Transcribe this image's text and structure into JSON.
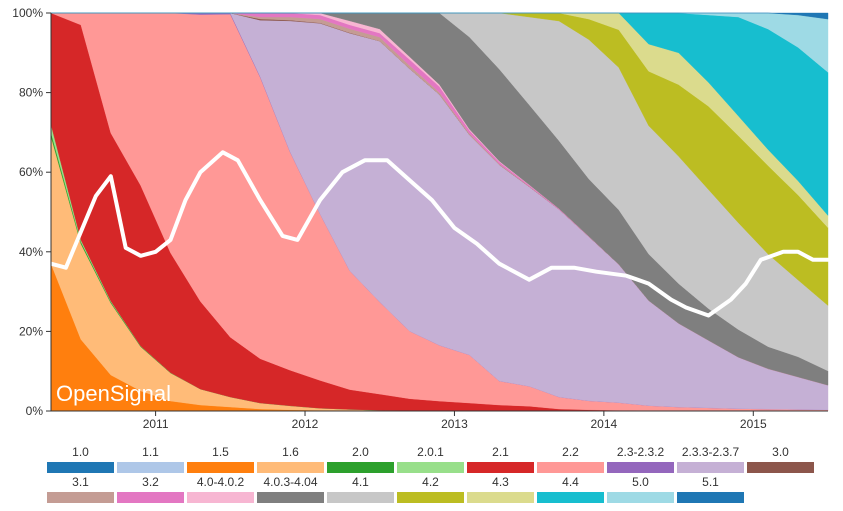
{
  "chart_data": {
    "type": "area",
    "stacked": true,
    "normalized": true,
    "brand": "OpenSignal",
    "y_ticks": [
      "0%",
      "20%",
      "40%",
      "60%",
      "80%",
      "100%"
    ],
    "ylim": [
      0,
      100
    ],
    "x_ticks": [
      {
        "label": "2011",
        "t": 2011.0
      },
      {
        "label": "2012",
        "t": 2012.0
      },
      {
        "label": "2013",
        "t": 2013.0
      },
      {
        "label": "2014",
        "t": 2014.0
      },
      {
        "label": "2015",
        "t": 2015.0
      }
    ],
    "xlim": [
      2010.3,
      2015.5
    ],
    "x": [
      2010.3,
      2010.5,
      2010.7,
      2010.9,
      2011.1,
      2011.3,
      2011.5,
      2011.7,
      2011.9,
      2012.1,
      2012.3,
      2012.5,
      2012.7,
      2012.9,
      2013.1,
      2013.3,
      2013.5,
      2013.7,
      2013.9,
      2014.1,
      2014.3,
      2014.5,
      2014.7,
      2014.9,
      2015.1,
      2015.3,
      2015.5
    ],
    "series": [
      {
        "name": "1.5",
        "color": "#ff7f0e",
        "values": [
          37,
          18,
          9,
          5,
          2.5,
          1.5,
          1,
          0.5,
          0.3,
          0.2,
          0.1,
          0,
          0,
          0,
          0,
          0,
          0,
          0,
          0,
          0,
          0,
          0,
          0,
          0,
          0,
          0,
          0
        ]
      },
      {
        "name": "1.6",
        "color": "#ffbb78",
        "values": [
          32,
          24,
          18,
          11,
          7,
          4,
          2.5,
          1.5,
          1,
          0.5,
          0.3,
          0.2,
          0.1,
          0,
          0,
          0,
          0,
          0,
          0,
          0,
          0,
          0,
          0,
          0,
          0,
          0,
          0
        ]
      },
      {
        "name": "2.0",
        "color": "#2ca02c",
        "values": [
          1,
          0.5,
          0.3,
          0.2,
          0.1,
          0,
          0,
          0,
          0,
          0,
          0,
          0,
          0,
          0,
          0,
          0,
          0,
          0,
          0,
          0,
          0,
          0,
          0,
          0,
          0,
          0,
          0
        ]
      },
      {
        "name": "2.0.1",
        "color": "#98df8a",
        "values": [
          2,
          0.5,
          0.2,
          0,
          0,
          0,
          0,
          0,
          0,
          0,
          0,
          0,
          0,
          0,
          0,
          0,
          0,
          0,
          0,
          0,
          0,
          0,
          0,
          0,
          0,
          0,
          0
        ]
      },
      {
        "name": "2.1",
        "color": "#d62728",
        "values": [
          28,
          54,
          42,
          40,
          30,
          22,
          15,
          11,
          9,
          7,
          5,
          4,
          3,
          2.5,
          2,
          1.5,
          1.2,
          0.5,
          0.3,
          0.2,
          0.1,
          0,
          0,
          0,
          0,
          0,
          0
        ]
      },
      {
        "name": "2.2",
        "color": "#ff9896",
        "values": [
          0,
          3,
          30,
          43,
          60,
          72,
          81,
          70,
          55,
          42,
          30,
          23,
          17,
          14,
          12,
          6,
          5,
          3,
          2.2,
          1.8,
          1.3,
          1,
          0.8,
          0.6,
          0.5,
          0.4,
          0.3
        ]
      },
      {
        "name": "2.3-2.3.2",
        "color": "#9467bd",
        "values": [
          0,
          0,
          0,
          0,
          0,
          0.4,
          0.3,
          0.2,
          0.1,
          0,
          0,
          0,
          0,
          0,
          0,
          0,
          0,
          0,
          0,
          0,
          0,
          0,
          0,
          0,
          0,
          0,
          0
        ]
      },
      {
        "name": "2.3.3-2.3.7",
        "color": "#c5b0d5",
        "values": [
          0,
          0,
          0,
          0,
          0,
          0,
          0,
          14,
          33,
          48,
          60,
          65,
          66,
          63,
          55,
          54,
          50,
          47,
          40,
          33,
          27,
          21,
          17,
          13,
          10,
          8,
          6
        ]
      },
      {
        "name": "3.0",
        "color": "#8c564b",
        "values": [
          0,
          0,
          0,
          0,
          0,
          0,
          0,
          0.3,
          0.2,
          0.1,
          0.1,
          0,
          0,
          0,
          0,
          0,
          0,
          0,
          0,
          0,
          0,
          0,
          0,
          0,
          0,
          0,
          0
        ]
      },
      {
        "name": "3.1",
        "color": "#c49c94",
        "values": [
          0,
          0,
          0,
          0,
          0,
          0,
          0,
          0.5,
          0.8,
          1,
          1,
          1,
          0.8,
          0.5,
          0.3,
          0.2,
          0.1,
          0,
          0,
          0,
          0,
          0,
          0,
          0,
          0,
          0,
          0
        ]
      },
      {
        "name": "3.2",
        "color": "#e377c2",
        "values": [
          0,
          0,
          0,
          0,
          0,
          0,
          0,
          1,
          1,
          1,
          1,
          1,
          1.5,
          1.5,
          0.8,
          0.5,
          0.3,
          0.2,
          0.1,
          0,
          0,
          0,
          0,
          0,
          0,
          0,
          0
        ]
      },
      {
        "name": "4.0-4.0.2",
        "color": "#f7b6d2",
        "values": [
          0,
          0,
          0,
          0,
          0,
          0,
          0,
          0,
          0,
          0.5,
          1,
          1,
          0.7,
          0.5,
          0.3,
          0.2,
          0.1,
          0,
          0,
          0,
          0,
          0,
          0,
          0,
          0,
          0,
          0
        ]
      },
      {
        "name": "4.0.3-4.04",
        "color": "#7f7f7f",
        "values": [
          0,
          0,
          0,
          0,
          0,
          0,
          0,
          0,
          0,
          0,
          2,
          4,
          11,
          18,
          23,
          23,
          20,
          17,
          14,
          13,
          12,
          10,
          8,
          7,
          5.5,
          5,
          3.5
        ]
      },
      {
        "name": "4.1",
        "color": "#c7c7c7",
        "values": [
          0,
          0,
          0,
          0,
          0,
          0,
          0,
          0,
          0,
          0,
          0,
          0,
          0,
          0,
          6,
          14,
          22,
          30,
          34,
          34,
          33,
          32,
          30,
          27,
          23,
          19,
          16
        ]
      },
      {
        "name": "4.2",
        "color": "#bcbd22",
        "values": [
          0,
          0,
          0,
          0,
          0,
          0,
          0,
          0,
          0,
          0,
          0,
          0,
          0,
          0,
          0,
          0,
          1,
          2,
          5,
          9,
          14,
          18,
          21,
          22,
          22,
          21,
          19
        ]
      },
      {
        "name": "4.3",
        "color": "#dbdb8d",
        "values": [
          0,
          0,
          0,
          0,
          0,
          0,
          0,
          0,
          0,
          0,
          0,
          0,
          0,
          0,
          0,
          0,
          0,
          0,
          1.5,
          4,
          7,
          8,
          6,
          5,
          4,
          3.5,
          3
        ]
      },
      {
        "name": "4.4",
        "color": "#17becf",
        "values": [
          0,
          0,
          0,
          0,
          0,
          0,
          0,
          0,
          0,
          0,
          0,
          0,
          0,
          0,
          0,
          0,
          0,
          0,
          0,
          0,
          8,
          10,
          17,
          25,
          30,
          33,
          35
        ]
      },
      {
        "name": "5.0",
        "color": "#9edae5",
        "values": [
          0,
          0,
          0,
          0,
          0,
          0,
          0,
          0,
          0,
          0,
          0,
          0,
          0,
          0,
          0,
          0,
          0,
          0,
          0,
          0,
          0,
          0,
          0.5,
          1,
          4,
          8,
          13
        ]
      },
      {
        "name": "5.1",
        "color": "#1f77b4",
        "values": [
          0,
          0,
          0,
          0,
          0,
          0,
          0,
          0,
          0,
          0,
          0,
          0,
          0,
          0,
          0,
          0,
          0,
          0,
          0,
          0,
          0,
          0,
          0,
          0,
          0,
          0.5,
          1.5
        ]
      }
    ],
    "overlay_line": {
      "color": "#ffffff",
      "points": [
        [
          2010.3,
          37
        ],
        [
          2010.4,
          36
        ],
        [
          2010.6,
          54
        ],
        [
          2010.7,
          59
        ],
        [
          2010.8,
          41
        ],
        [
          2010.9,
          39
        ],
        [
          2011.0,
          40
        ],
        [
          2011.1,
          43
        ],
        [
          2011.2,
          53
        ],
        [
          2011.3,
          60
        ],
        [
          2011.45,
          65
        ],
        [
          2011.55,
          63
        ],
        [
          2011.7,
          53
        ],
        [
          2011.85,
          44
        ],
        [
          2011.95,
          43
        ],
        [
          2012.1,
          53
        ],
        [
          2012.25,
          60
        ],
        [
          2012.4,
          63
        ],
        [
          2012.55,
          63
        ],
        [
          2012.7,
          58
        ],
        [
          2012.85,
          53
        ],
        [
          2013.0,
          46
        ],
        [
          2013.15,
          42
        ],
        [
          2013.3,
          37
        ],
        [
          2013.5,
          33
        ],
        [
          2013.65,
          36
        ],
        [
          2013.8,
          36
        ],
        [
          2013.95,
          35
        ],
        [
          2014.15,
          34
        ],
        [
          2014.3,
          32
        ],
        [
          2014.45,
          28
        ],
        [
          2014.55,
          26
        ],
        [
          2014.7,
          24
        ],
        [
          2014.85,
          28
        ],
        [
          2014.95,
          32
        ],
        [
          2015.05,
          38
        ],
        [
          2015.2,
          40
        ],
        [
          2015.3,
          40
        ],
        [
          2015.4,
          38
        ],
        [
          2015.5,
          38
        ]
      ]
    },
    "legend": {
      "placement": "bottom",
      "rows": [
        [
          "1.0",
          "1.1",
          "1.5",
          "1.6",
          "2.0",
          "2.0.1",
          "2.1",
          "2.2",
          "2.3-2.3.2",
          "2.3.3-2.3.7",
          "3.0"
        ],
        [
          "3.1",
          "3.2",
          "4.0-4.0.2",
          "4.0.3-4.04",
          "4.1",
          "4.2",
          "4.3",
          "4.4",
          "5.0",
          "5.1"
        ]
      ],
      "colors": {
        "1.0": "#1f77b4",
        "1.1": "#aec7e8",
        "1.5": "#ff7f0e",
        "1.6": "#ffbb78",
        "2.0": "#2ca02c",
        "2.0.1": "#98df8a",
        "2.1": "#d62728",
        "2.2": "#ff9896",
        "2.3-2.3.2": "#9467bd",
        "2.3.3-2.3.7": "#c5b0d5",
        "3.0": "#8c564b",
        "3.1": "#c49c94",
        "3.2": "#e377c2",
        "4.0-4.0.2": "#f7b6d2",
        "4.0.3-4.04": "#7f7f7f",
        "4.1": "#c7c7c7",
        "4.2": "#bcbd22",
        "4.3": "#dbdb8d",
        "4.4": "#17becf",
        "5.0": "#9edae5",
        "5.1": "#1f77b4"
      }
    }
  }
}
